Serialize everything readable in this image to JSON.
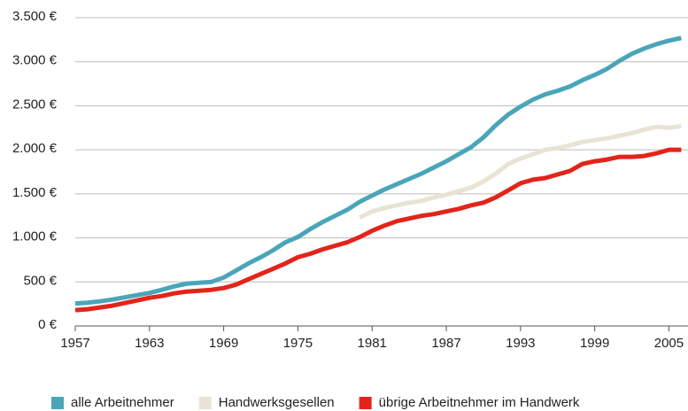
{
  "chart_data": {
    "type": "line",
    "x": [
      1957,
      1958,
      1959,
      1960,
      1961,
      1962,
      1963,
      1964,
      1965,
      1966,
      1967,
      1968,
      1969,
      1970,
      1971,
      1972,
      1973,
      1974,
      1975,
      1976,
      1977,
      1978,
      1979,
      1980,
      1981,
      1982,
      1983,
      1984,
      1985,
      1986,
      1987,
      1988,
      1989,
      1990,
      1991,
      1992,
      1993,
      1994,
      1995,
      1996,
      1997,
      1998,
      1999,
      2000,
      2001,
      2002,
      2003,
      2004,
      2005,
      2006
    ],
    "series": [
      {
        "name": "alle Arbeitnehmer",
        "color": "#4aa5b8",
        "values": [
          255,
          265,
          280,
          300,
          325,
          350,
          375,
          410,
          450,
          480,
          490,
          500,
          550,
          630,
          710,
          780,
          860,
          950,
          1010,
          1100,
          1180,
          1250,
          1320,
          1410,
          1480,
          1550,
          1610,
          1670,
          1730,
          1800,
          1870,
          1950,
          2030,
          2140,
          2280,
          2400,
          2490,
          2570,
          2630,
          2670,
          2720,
          2790,
          2850,
          2920,
          3010,
          3090,
          3150,
          3200,
          3240,
          3270
        ]
      },
      {
        "name": "Handwerksgesellen",
        "color": "#e8e3d3",
        "values": [
          null,
          null,
          null,
          null,
          null,
          null,
          null,
          null,
          null,
          null,
          null,
          null,
          null,
          null,
          null,
          null,
          null,
          null,
          null,
          null,
          null,
          null,
          null,
          1230,
          1300,
          1340,
          1370,
          1400,
          1420,
          1460,
          1490,
          1530,
          1570,
          1640,
          1730,
          1840,
          1900,
          1950,
          2000,
          2020,
          2050,
          2090,
          2110,
          2130,
          2160,
          2190,
          2230,
          2260,
          2250,
          2270
        ]
      },
      {
        "name": "übrige Arbeitnehmer im Handwerk",
        "color": "#e3241b",
        "values": [
          180,
          190,
          210,
          230,
          260,
          290,
          320,
          340,
          370,
          390,
          400,
          410,
          430,
          470,
          530,
          590,
          650,
          710,
          780,
          820,
          870,
          910,
          950,
          1010,
          1080,
          1140,
          1190,
          1220,
          1250,
          1270,
          1300,
          1330,
          1370,
          1400,
          1460,
          1540,
          1620,
          1660,
          1680,
          1720,
          1760,
          1840,
          1870,
          1890,
          1920,
          1920,
          1930,
          1960,
          2000,
          2000
        ]
      }
    ],
    "xlim": [
      1957,
      2006.4
    ],
    "xticks": [
      1957,
      1963,
      1969,
      1975,
      1981,
      1987,
      1993,
      1999,
      2005
    ],
    "ylim": [
      0,
      3500
    ],
    "yticks": [
      {
        "value": 0,
        "label": "0 €"
      },
      {
        "value": 500,
        "label": "500 €"
      },
      {
        "value": 1000,
        "label": "1.000 €"
      },
      {
        "value": 1500,
        "label": "1.500 €"
      },
      {
        "value": 2000,
        "label": "2.000 €"
      },
      {
        "value": 2500,
        "label": "2.500 €"
      },
      {
        "value": 3000,
        "label": "3.000 €"
      },
      {
        "value": 3500,
        "label": "3.500 €"
      }
    ],
    "grid": true,
    "legend": "bottom"
  }
}
